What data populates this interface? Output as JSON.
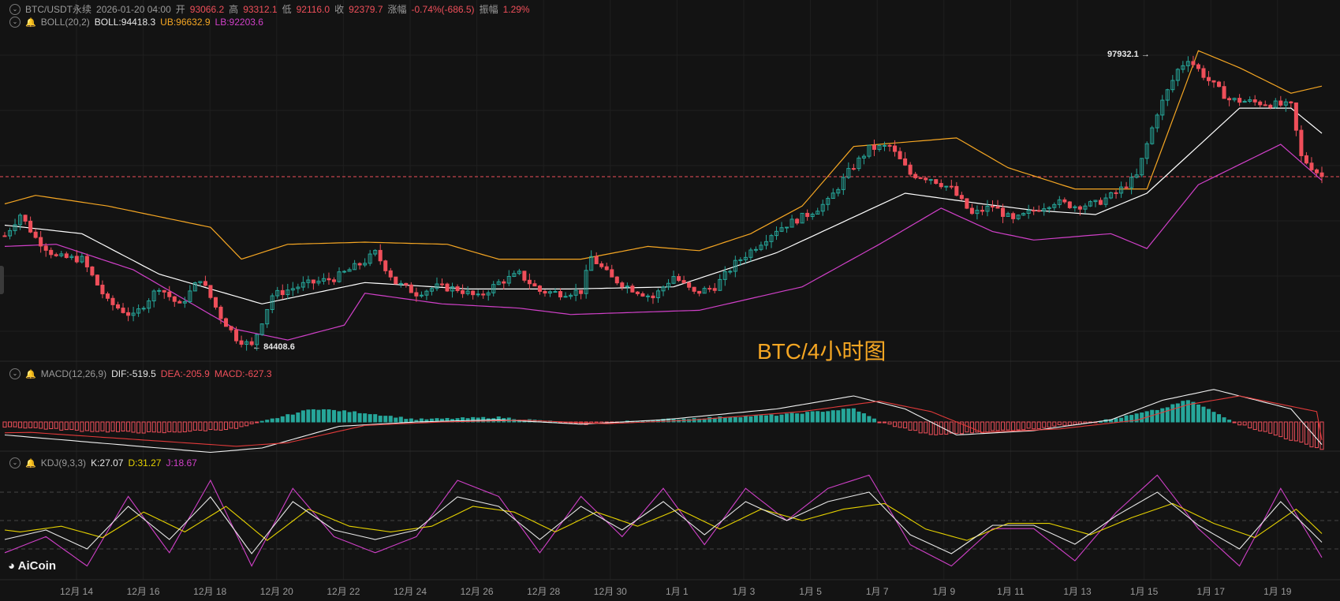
{
  "header": {
    "symbol": "BTC/USDT永续",
    "datetime": "2026-01-20 04:00",
    "open_label": "开",
    "open": "93066.2",
    "high_label": "高",
    "high": "93312.1",
    "low_label": "低",
    "low": "92116.0",
    "close_label": "收",
    "close": "92379.7",
    "change_label": "涨幅",
    "change": "-0.74%(-686.5)",
    "amp_label": "振幅",
    "amp": "1.29%"
  },
  "boll": {
    "name": "BOLL(20,2)",
    "mid": "BOLL:94418.3",
    "ub": "UB:96632.9",
    "lb": "LB:92203.6"
  },
  "macd": {
    "name": "MACD(12,26,9)",
    "dif": "DIF:-519.5",
    "dea": "DEA:-205.9",
    "macd": "MACD:-627.3"
  },
  "kdj": {
    "name": "KDJ(9,3,3)",
    "k": "K:27.07",
    "d": "D:31.27",
    "j": "J:18.67"
  },
  "annotations": {
    "high_marker": "97932.1",
    "low_marker": "84408.6"
  },
  "watermark": "BTC/4小时图",
  "logo": "AiCoin",
  "colors": {
    "up": "#26a69a",
    "down": "#ef4f5a",
    "mid": "#ffffff",
    "ub": "#f5a623",
    "lb": "#d040c8",
    "kdj_d": "#e6d200"
  },
  "chart_data": {
    "type": "candlestick",
    "x_ticks": [
      "12月 14",
      "12月 16",
      "12月 18",
      "12月 20",
      "12月 22",
      "12月 24",
      "12月 26",
      "12月 28",
      "12月 30",
      "1月 1",
      "1月 3",
      "1月 5",
      "1月 7",
      "1月 9",
      "1月 11",
      "1月 13",
      "1月 15",
      "1月 17",
      "1月 19"
    ],
    "price_anchors": [
      [
        0,
        89600
      ],
      [
        3,
        90600
      ],
      [
        6,
        89500
      ],
      [
        10,
        88600
      ],
      [
        15,
        88500
      ],
      [
        20,
        86500
      ],
      [
        25,
        85800
      ],
      [
        30,
        87200
      ],
      [
        34,
        86300
      ],
      [
        38,
        87600
      ],
      [
        42,
        85800
      ],
      [
        45,
        84800
      ],
      [
        48,
        84408.6
      ],
      [
        52,
        86800
      ],
      [
        58,
        87300
      ],
      [
        64,
        87600
      ],
      [
        70,
        88400
      ],
      [
        72,
        88800
      ],
      [
        76,
        87400
      ],
      [
        80,
        86900
      ],
      [
        84,
        87200
      ],
      [
        88,
        87100
      ],
      [
        92,
        86700
      ],
      [
        96,
        87400
      ],
      [
        100,
        87800
      ],
      [
        104,
        87000
      ],
      [
        108,
        86900
      ],
      [
        112,
        87000
      ],
      [
        114,
        88600
      ],
      [
        118,
        87600
      ],
      [
        122,
        87100
      ],
      [
        126,
        86700
      ],
      [
        130,
        87700
      ],
      [
        134,
        86900
      ],
      [
        138,
        87200
      ],
      [
        142,
        88300
      ],
      [
        146,
        89100
      ],
      [
        150,
        89900
      ],
      [
        156,
        90600
      ],
      [
        160,
        91200
      ],
      [
        164,
        92600
      ],
      [
        168,
        93700
      ],
      [
        172,
        93800
      ],
      [
        176,
        92500
      ],
      [
        180,
        92300
      ],
      [
        184,
        91800
      ],
      [
        188,
        90600
      ],
      [
        192,
        91000
      ],
      [
        196,
        90300
      ],
      [
        200,
        90800
      ],
      [
        204,
        91200
      ],
      [
        208,
        91000
      ],
      [
        212,
        91100
      ],
      [
        216,
        91600
      ],
      [
        220,
        92400
      ],
      [
        224,
        95400
      ],
      [
        228,
        97400
      ],
      [
        230,
        97932.1
      ],
      [
        234,
        96900
      ],
      [
        238,
        96000
      ],
      [
        242,
        95900
      ],
      [
        246,
        95800
      ],
      [
        250,
        95700
      ],
      [
        252,
        93300
      ],
      [
        256,
        92379.7
      ]
    ],
    "boll_mid_anchors": [
      [
        0,
        90100
      ],
      [
        15,
        89700
      ],
      [
        30,
        87800
      ],
      [
        50,
        86400
      ],
      [
        70,
        87400
      ],
      [
        90,
        87100
      ],
      [
        110,
        87100
      ],
      [
        130,
        87200
      ],
      [
        150,
        88800
      ],
      [
        175,
        91600
      ],
      [
        190,
        91100
      ],
      [
        200,
        90800
      ],
      [
        212,
        90600
      ],
      [
        222,
        91600
      ],
      [
        240,
        95600
      ],
      [
        250,
        95600
      ],
      [
        256,
        94418.3
      ]
    ],
    "boll_ub_anchors": [
      [
        0,
        91100
      ],
      [
        6,
        91500
      ],
      [
        20,
        91000
      ],
      [
        30,
        90500
      ],
      [
        40,
        90000
      ],
      [
        46,
        88500
      ],
      [
        55,
        89200
      ],
      [
        70,
        89300
      ],
      [
        86,
        89200
      ],
      [
        96,
        88500
      ],
      [
        112,
        88500
      ],
      [
        125,
        89100
      ],
      [
        135,
        88900
      ],
      [
        145,
        89700
      ],
      [
        155,
        91000
      ],
      [
        165,
        93800
      ],
      [
        185,
        94200
      ],
      [
        195,
        92800
      ],
      [
        208,
        91800
      ],
      [
        222,
        91800
      ],
      [
        232,
        98300
      ],
      [
        240,
        97500
      ],
      [
        250,
        96300
      ],
      [
        256,
        96632.9
      ]
    ],
    "boll_lb_anchors": [
      [
        0,
        89100
      ],
      [
        10,
        89200
      ],
      [
        25,
        88000
      ],
      [
        45,
        85200
      ],
      [
        55,
        84700
      ],
      [
        66,
        85400
      ],
      [
        70,
        86900
      ],
      [
        85,
        86400
      ],
      [
        100,
        86200
      ],
      [
        110,
        85900
      ],
      [
        135,
        86100
      ],
      [
        155,
        87200
      ],
      [
        170,
        89200
      ],
      [
        182,
        90900
      ],
      [
        192,
        89800
      ],
      [
        200,
        89400
      ],
      [
        215,
        89700
      ],
      [
        222,
        89000
      ],
      [
        232,
        92000
      ],
      [
        248,
        93900
      ],
      [
        256,
        92203.6
      ]
    ],
    "macd_anchors": [
      [
        0,
        -300
      ],
      [
        20,
        -500
      ],
      [
        40,
        -700
      ],
      [
        50,
        -600
      ],
      [
        65,
        -100
      ],
      [
        80,
        0
      ],
      [
        96,
        50
      ],
      [
        112,
        -50
      ],
      [
        128,
        50
      ],
      [
        150,
        300
      ],
      [
        165,
        600
      ],
      [
        175,
        300
      ],
      [
        185,
        -300
      ],
      [
        200,
        -200
      ],
      [
        215,
        50
      ],
      [
        225,
        500
      ],
      [
        235,
        750
      ],
      [
        250,
        300
      ],
      [
        256,
        -519.5
      ]
    ],
    "macd_hist_anchors": [
      [
        0,
        -100
      ],
      [
        15,
        -200
      ],
      [
        30,
        -250
      ],
      [
        45,
        -150
      ],
      [
        50,
        0
      ],
      [
        60,
        300
      ],
      [
        70,
        200
      ],
      [
        80,
        50
      ],
      [
        96,
        100
      ],
      [
        112,
        -50
      ],
      [
        128,
        50
      ],
      [
        150,
        150
      ],
      [
        165,
        300
      ],
      [
        170,
        0
      ],
      [
        180,
        -300
      ],
      [
        200,
        -150
      ],
      [
        215,
        50
      ],
      [
        225,
        300
      ],
      [
        230,
        500
      ],
      [
        240,
        -50
      ],
      [
        256,
        -627.3
      ]
    ],
    "kdj_k_anchors": [
      [
        0,
        30
      ],
      [
        8,
        40
      ],
      [
        16,
        20
      ],
      [
        24,
        65
      ],
      [
        32,
        30
      ],
      [
        40,
        75
      ],
      [
        48,
        15
      ],
      [
        56,
        70
      ],
      [
        64,
        40
      ],
      [
        72,
        30
      ],
      [
        80,
        40
      ],
      [
        88,
        75
      ],
      [
        96,
        65
      ],
      [
        104,
        30
      ],
      [
        112,
        65
      ],
      [
        120,
        40
      ],
      [
        128,
        70
      ],
      [
        136,
        35
      ],
      [
        144,
        70
      ],
      [
        152,
        50
      ],
      [
        160,
        70
      ],
      [
        168,
        80
      ],
      [
        176,
        35
      ],
      [
        184,
        15
      ],
      [
        192,
        45
      ],
      [
        200,
        45
      ],
      [
        208,
        25
      ],
      [
        216,
        55
      ],
      [
        224,
        80
      ],
      [
        232,
        45
      ],
      [
        240,
        20
      ],
      [
        248,
        70
      ],
      [
        256,
        27.07
      ]
    ],
    "kdj_ylim": [
      0,
      100
    ],
    "ylim": [
      84000,
      99200
    ]
  }
}
